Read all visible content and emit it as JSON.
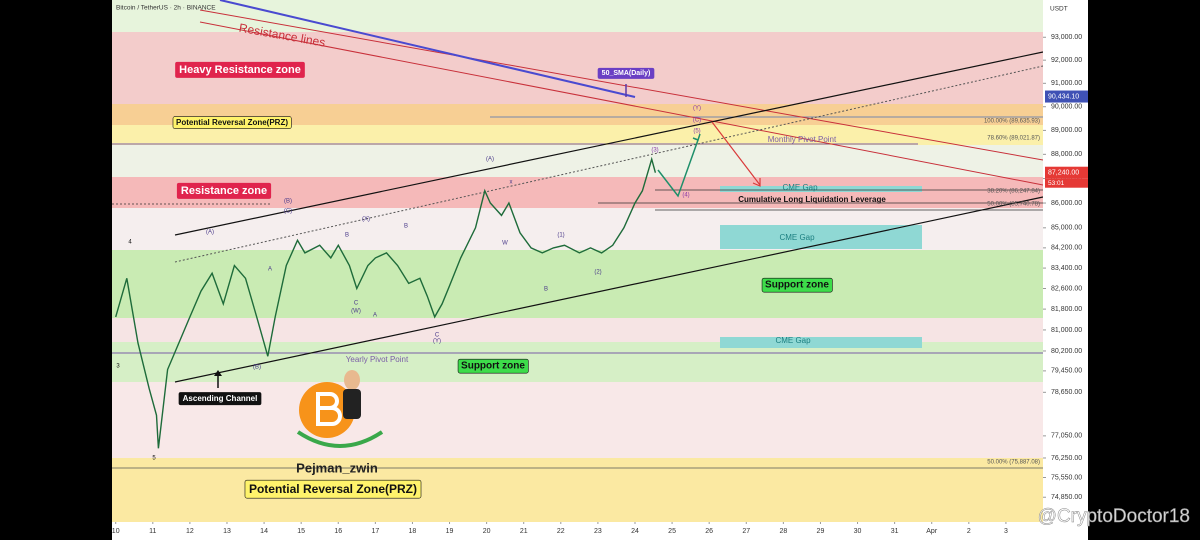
{
  "chart_data": {
    "type": "line",
    "title": "Bitcoin / TetherUS · 2h · BINANCE",
    "currency": "USDT",
    "log_scale": true,
    "color": "#1e6b3a",
    "x": [
      10.0,
      10.3,
      10.6,
      10.9,
      11.1,
      11.15,
      11.4,
      11.7,
      12.0,
      12.3,
      12.6,
      12.9,
      13.2,
      13.5,
      13.8,
      14.0,
      14.1,
      14.3,
      14.6,
      14.9,
      15.1,
      15.5,
      15.8,
      16.0,
      16.3,
      16.5,
      16.8,
      17.0,
      17.3,
      17.6,
      17.9,
      18.2,
      18.4,
      18.6,
      18.8,
      19.0,
      19.3,
      19.7,
      19.95,
      20.1,
      20.4,
      20.6,
      20.9,
      21.2,
      21.5,
      21.8,
      22.1,
      22.5,
      22.8,
      23.1,
      23.4,
      23.7,
      24.0,
      24.2,
      24.45,
      24.55
    ],
    "values": [
      81500,
      83000,
      80500,
      78800,
      77800,
      76600,
      79500,
      80500,
      81500,
      82500,
      83200,
      82000,
      83500,
      83000,
      81500,
      80500,
      80000,
      81500,
      83500,
      84500,
      84000,
      84300,
      83800,
      84300,
      83500,
      82600,
      83500,
      83800,
      84000,
      83500,
      82800,
      83000,
      82300,
      81500,
      82000,
      82700,
      83800,
      85000,
      86500,
      86000,
      85500,
      86000,
      84800,
      84200,
      84000,
      84200,
      84300,
      84000,
      84200,
      84000,
      84300,
      85000,
      86000,
      86500,
      87800,
      87240
    ],
    "xlim": [
      9.9,
      35
    ],
    "xticks": [
      10,
      11,
      12,
      13,
      14,
      15,
      16,
      17,
      18,
      19,
      20,
      21,
      22,
      23,
      24,
      25,
      26,
      27,
      28,
      29,
      30,
      31,
      {
        "value": 32,
        "label": "Apr"
      },
      {
        "value": 33,
        "label": "2"
      },
      {
        "value": 34,
        "label": "3"
      }
    ],
    "ylim": [
      74050,
      94650
    ],
    "yticks": [
      {
        "value": 93000,
        "label": "93,000.00"
      },
      {
        "value": 92000,
        "label": "92,000.00"
      },
      {
        "value": 91000,
        "label": "91,000.00"
      },
      {
        "value": 90000,
        "label": "90,000.00"
      },
      {
        "value": 89000,
        "label": "89,000.00"
      },
      {
        "value": 88000,
        "label": "88,000.00"
      },
      {
        "value": 87000,
        "label": "87,000.00"
      },
      {
        "value": 86000,
        "label": "86,000.00"
      },
      {
        "value": 85000,
        "label": "85,000.00"
      },
      {
        "value": 84200,
        "label": "84,200.00"
      },
      {
        "value": 83400,
        "label": "83,400.00"
      },
      {
        "value": 82600,
        "label": "82,600.00"
      },
      {
        "value": 81800,
        "label": "81,800.00"
      },
      {
        "value": 81000,
        "label": "81,000.00"
      },
      {
        "value": 80200,
        "label": "80,200.00"
      },
      {
        "value": 79450,
        "label": "79,450.00"
      },
      {
        "value": 78650,
        "label": "78,650.00"
      },
      {
        "value": 77050,
        "label": "77,050.00"
      },
      {
        "value": 76250,
        "label": "76,250.00"
      },
      {
        "value": 75550,
        "label": "75,550.00"
      },
      {
        "value": 74850,
        "label": "74,850.00"
      }
    ],
    "sma_price": {
      "value": 90434.1,
      "label": "90,434.10"
    },
    "last_price": {
      "value": 87240,
      "label": "87,240.00"
    },
    "countdown": "53:01",
    "annotations": [
      "Resistance lines",
      "Heavy Resistance zone",
      "50_SMA(Daily)",
      "Potential Reversal Zone(PRZ)",
      "Monthly Pivot Point",
      "CME Gap",
      "Cumulative Long Liquidation Leverage",
      "Resistance zone",
      "CME Gap",
      "Support zone",
      "CME Gap",
      "Yearly Pivot Point",
      "Support zone",
      "Ascending Channel",
      "Pejman_zwin",
      "Potential Reversal Zone(PRZ)",
      "100.00% (89,635.93)",
      "78.60% (89,021.87)",
      "38.20% (86,247.84)",
      "50.00% (85,740.78)",
      "50.00% (75,887.08)"
    ],
    "wave_labels": [
      "4",
      "3",
      "5",
      "(A)",
      "(B)",
      "(C)",
      "A",
      "B",
      "C",
      "(W)",
      "A",
      "(X)",
      "B",
      "C",
      "(Y)",
      "(B)",
      "(A)",
      "x",
      "W",
      "(1)",
      "B",
      "(2)",
      "(3)",
      "(4)",
      "(5)",
      "(C)",
      "(Y)"
    ],
    "watermark": "@CryptoDoctor18"
  }
}
